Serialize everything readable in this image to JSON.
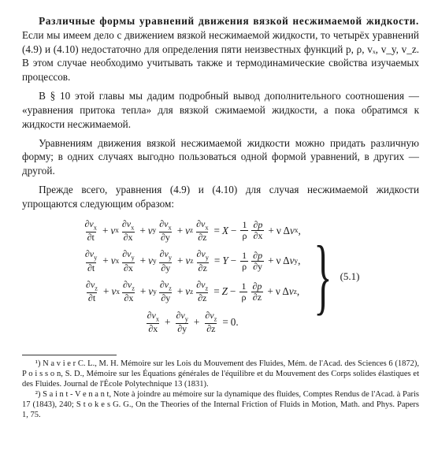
{
  "p1_lead": "Различные формы уравнений движения вязкой несжимаемой жидкости.",
  "p1_rest": " Если мы имеем дело с движением вязкой несжимаемой жидкости, то четырёх уравнений (4.9) и (4.10) недостаточно для определения пяти неизвестных функций p, ρ, vₓ, v_y, v_z. В этом случае необходимо учитывать также и термодинамические свойства изучаемых процессов.",
  "p2": "В § 10 этой главы мы дадим подробный вывод дополнительного соотношения — «уравнения притока тепла» для вязкой сжимаемой жидкости, а пока обратимся к жидкости несжимаемой.",
  "p3": "Уравнениям движения вязкой несжимаемой жидкости можно придать различную форму; в одних случаях выгодно пользоваться одной формой уравнений, в других — другой.",
  "p4": "Прежде всего, уравнения (4.9) и (4.10) для случая несжимаемой жидкости упрощаются следующим образом:",
  "eq": {
    "rows": [
      {
        "d": "x",
        "rhs": "X",
        "dp": "∂x"
      },
      {
        "d": "y",
        "rhs": "Y",
        "dp": "∂y"
      },
      {
        "d": "z",
        "rhs": "Z",
        "dp": "∂z"
      }
    ],
    "num": "(5.1)"
  },
  "fn1_mark": "¹)",
  "fn1": "N a v i e r  C. L., M. H. Mémoire sur les Lois du Mouvement des Fluides, Mém. de l'Acad. des Sciences 6 (1872), P o i s s o n,  S. D., Mémoire sur les Équations générales de l'équilibre et du Mouvement des Corps solides élastiques et des Fluides. Journal de l'École Polytechnique 13 (1831).",
  "fn2_mark": "²)",
  "fn2": "S a i n t - V e n a n t, Note à joindre au mémoire sur la dynamique des fluides, Comptes Rendus de l'Acad. à Paris 17 (1843), 240; S t o k e s  G. G., On the Theories of the Internal Friction of Fluids in Motion, Math. and Phys. Papers 1, 75."
}
